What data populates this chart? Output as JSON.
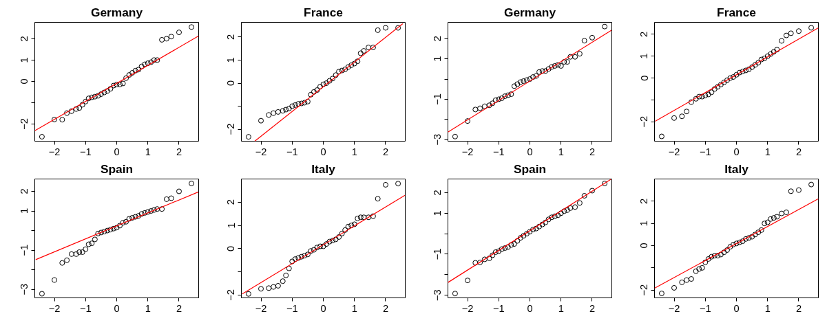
{
  "chart_data": [
    {
      "type": "scatter",
      "title": "Germany",
      "grid": false,
      "xlim": [
        -2.63,
        2.63
      ],
      "ylim": [
        -2.81,
        2.77
      ],
      "xticks": [
        -2,
        -1,
        0,
        1,
        2
      ],
      "yticks": [
        -2,
        {
          "value": -1,
          "label": null
        },
        0,
        1,
        2
      ],
      "x": [
        -2.4,
        -2.0,
        -1.75,
        -1.6,
        -1.45,
        -1.3,
        -1.2,
        -1.1,
        -1.0,
        -0.9,
        -0.8,
        -0.7,
        -0.6,
        -0.5,
        -0.4,
        -0.3,
        -0.2,
        -0.1,
        0,
        0.1,
        0.2,
        0.3,
        0.4,
        0.5,
        0.6,
        0.7,
        0.8,
        0.9,
        1.0,
        1.1,
        1.2,
        1.3,
        1.45,
        1.6,
        1.75,
        2.0,
        2.4
      ],
      "series": [
        {
          "color": "#000000",
          "marker": "circle",
          "values": [
            -2.6,
            -1.79,
            -1.8,
            -1.49,
            -1.4,
            -1.3,
            -1.25,
            -1.1,
            -0.95,
            -0.8,
            -0.75,
            -0.72,
            -0.68,
            -0.6,
            -0.52,
            -0.45,
            -0.35,
            -0.2,
            -0.15,
            -0.15,
            -0.1,
            0.15,
            0.3,
            0.4,
            0.5,
            0.55,
            0.7,
            0.8,
            0.85,
            0.9,
            1.0,
            1.0,
            1.95,
            2.0,
            2.1,
            2.3,
            2.55
          ]
        },
        {
          "type": "line",
          "color": "#ff0000",
          "x": [
            -2.63,
            2.63
          ],
          "values": [
            -2.32,
            2.13
          ]
        }
      ]
    },
    {
      "type": "scatter",
      "title": "France",
      "grid": false,
      "xlim": [
        -2.63,
        2.63
      ],
      "ylim": [
        -2.52,
        2.64
      ],
      "xticks": [
        -2,
        -1,
        0,
        1,
        2
      ],
      "yticks": [
        -2,
        {
          "value": -1,
          "label": null
        },
        0,
        1,
        2
      ],
      "x": [
        -2.4,
        -2.0,
        -1.75,
        -1.6,
        -1.45,
        -1.3,
        -1.2,
        -1.1,
        -1.0,
        -0.9,
        -0.8,
        -0.7,
        -0.6,
        -0.5,
        -0.4,
        -0.3,
        -0.2,
        -0.1,
        0,
        0.1,
        0.2,
        0.3,
        0.4,
        0.5,
        0.6,
        0.7,
        0.8,
        0.9,
        1.0,
        1.1,
        1.2,
        1.3,
        1.45,
        1.6,
        1.75,
        2.0,
        2.4
      ],
      "series": [
        {
          "color": "#000000",
          "marker": "circle",
          "values": [
            -2.33,
            -1.63,
            -1.38,
            -1.3,
            -1.25,
            -1.2,
            -1.15,
            -1.1,
            -1.0,
            -0.95,
            -0.9,
            -0.88,
            -0.85,
            -0.8,
            -0.5,
            -0.38,
            -0.3,
            -0.15,
            -0.05,
            0.0,
            0.1,
            0.2,
            0.35,
            0.5,
            0.55,
            0.6,
            0.7,
            0.78,
            0.85,
            0.95,
            1.3,
            1.4,
            1.55,
            1.55,
            2.3,
            2.4,
            2.4
          ]
        },
        {
          "type": "line",
          "color": "#ff0000",
          "x": [
            -2.2,
            2.55
          ],
          "values": [
            -2.52,
            2.58
          ]
        }
      ]
    },
    {
      "type": "scatter",
      "title": "Germany",
      "grid": false,
      "xlim": [
        -2.63,
        2.63
      ],
      "ylim": [
        -3.08,
        2.81
      ],
      "xticks": [
        -2,
        -1,
        0,
        1,
        2
      ],
      "yticks": [
        -3,
        {
          "value": -2,
          "label": null
        },
        -1,
        {
          "value": 0,
          "label": null
        },
        1,
        2
      ],
      "x": [
        -2.4,
        -2.0,
        -1.75,
        -1.6,
        -1.45,
        -1.3,
        -1.2,
        -1.1,
        -1.0,
        -0.9,
        -0.8,
        -0.7,
        -0.6,
        -0.5,
        -0.4,
        -0.3,
        -0.2,
        -0.1,
        0,
        0.1,
        0.2,
        0.3,
        0.4,
        0.5,
        0.6,
        0.7,
        0.8,
        0.9,
        1.0,
        1.1,
        1.2,
        1.3,
        1.45,
        1.6,
        1.75,
        2.0,
        2.4
      ],
      "series": [
        {
          "color": "#000000",
          "marker": "circle",
          "values": [
            -2.85,
            -2.08,
            -1.51,
            -1.45,
            -1.35,
            -1.3,
            -1.2,
            -1.05,
            -1.0,
            -0.95,
            -0.85,
            -0.8,
            -0.75,
            -0.35,
            -0.25,
            -0.15,
            -0.1,
            -0.05,
            0.0,
            0.1,
            0.15,
            0.35,
            0.4,
            0.4,
            0.5,
            0.6,
            0.65,
            0.7,
            0.65,
            0.85,
            0.85,
            1.1,
            1.1,
            1.25,
            1.9,
            2.05,
            2.6
          ]
        },
        {
          "type": "line",
          "color": "#ff0000",
          "x": [
            -2.63,
            2.62
          ],
          "values": [
            -2.63,
            2.42
          ]
        }
      ]
    },
    {
      "type": "scatter",
      "title": "France",
      "grid": false,
      "xlim": [
        -2.63,
        2.63
      ],
      "ylim": [
        -2.89,
        2.55
      ],
      "xticks": [
        -2,
        -1,
        0,
        1,
        2
      ],
      "yticks": [
        -2,
        {
          "value": -1,
          "label": null
        },
        0,
        1,
        2
      ],
      "x": [
        -2.4,
        -2.0,
        -1.75,
        -1.6,
        -1.45,
        -1.3,
        -1.2,
        -1.1,
        -1.0,
        -0.9,
        -0.8,
        -0.7,
        -0.6,
        -0.5,
        -0.4,
        -0.3,
        -0.2,
        -0.1,
        0,
        0.1,
        0.2,
        0.3,
        0.4,
        0.5,
        0.6,
        0.7,
        0.8,
        0.9,
        1.0,
        1.1,
        1.2,
        1.3,
        1.45,
        1.6,
        1.75,
        2.0,
        2.4
      ],
      "series": [
        {
          "color": "#000000",
          "marker": "circle",
          "values": [
            -2.67,
            -1.83,
            -1.75,
            -1.53,
            -1.1,
            -0.95,
            -0.85,
            -0.85,
            -0.8,
            -0.75,
            -0.65,
            -0.5,
            -0.4,
            -0.3,
            -0.2,
            -0.1,
            0.0,
            0.05,
            0.15,
            0.25,
            0.3,
            0.35,
            0.4,
            0.5,
            0.6,
            0.7,
            0.85,
            0.9,
            1.0,
            1.1,
            1.2,
            1.3,
            1.7,
            1.95,
            2.05,
            2.15,
            2.3
          ]
        },
        {
          "type": "line",
          "color": "#ff0000",
          "x": [
            -2.61,
            2.63
          ],
          "values": [
            -1.98,
            2.3
          ]
        }
      ]
    },
    {
      "type": "scatter",
      "title": "Spain",
      "grid": false,
      "xlim": [
        -2.63,
        2.63
      ],
      "ylim": [
        -3.43,
        2.63
      ],
      "xticks": [
        -2,
        -1,
        0,
        1,
        2
      ],
      "yticks": [
        -3,
        {
          "value": -2,
          "label": null
        },
        -1,
        {
          "value": 0,
          "label": null
        },
        1,
        2
      ],
      "x": [
        -2.4,
        -2.0,
        -1.75,
        -1.6,
        -1.45,
        -1.3,
        -1.2,
        -1.1,
        -1.0,
        -0.9,
        -0.8,
        -0.7,
        -0.6,
        -0.5,
        -0.4,
        -0.3,
        -0.2,
        -0.1,
        0,
        0.1,
        0.2,
        0.3,
        0.4,
        0.5,
        0.6,
        0.7,
        0.8,
        0.9,
        1.0,
        1.1,
        1.2,
        1.3,
        1.45,
        1.6,
        1.75,
        2.0,
        2.4
      ],
      "series": [
        {
          "color": "#000000",
          "marker": "circle",
          "values": [
            -3.22,
            -2.52,
            -1.65,
            -1.51,
            -1.2,
            -1.2,
            -1.1,
            -1.1,
            -0.95,
            -0.7,
            -0.65,
            -0.45,
            -0.15,
            -0.1,
            -0.05,
            0.0,
            0.05,
            0.1,
            0.15,
            0.25,
            0.4,
            0.45,
            0.6,
            0.65,
            0.7,
            0.75,
            0.85,
            0.9,
            0.95,
            1.0,
            1.05,
            1.1,
            1.1,
            1.6,
            1.65,
            2.0,
            2.4
          ]
        },
        {
          "type": "line",
          "color": "#ff0000",
          "x": [
            -2.6,
            2.62
          ],
          "values": [
            -1.48,
            1.97
          ]
        }
      ]
    },
    {
      "type": "scatter",
      "title": "Italy",
      "grid": false,
      "xlim": [
        -2.63,
        2.63
      ],
      "ylim": [
        -2.12,
        3.0
      ],
      "xticks": [
        -2,
        -1,
        0,
        1,
        2
      ],
      "yticks": [
        -2,
        {
          "value": -1,
          "label": null
        },
        0,
        1,
        2
      ],
      "x": [
        -2.4,
        -2.0,
        -1.75,
        -1.6,
        -1.45,
        -1.3,
        -1.2,
        -1.1,
        -1.0,
        -0.9,
        -0.8,
        -0.7,
        -0.6,
        -0.5,
        -0.4,
        -0.3,
        -0.2,
        -0.1,
        0,
        0.1,
        0.2,
        0.3,
        0.4,
        0.5,
        0.6,
        0.7,
        0.8,
        0.9,
        1.0,
        1.1,
        1.2,
        1.3,
        1.45,
        1.6,
        1.75,
        2.0,
        2.4
      ],
      "series": [
        {
          "color": "#000000",
          "marker": "circle",
          "values": [
            -1.95,
            -1.73,
            -1.7,
            -1.65,
            -1.6,
            -1.4,
            -1.15,
            -0.85,
            -0.55,
            -0.45,
            -0.4,
            -0.35,
            -0.3,
            -0.25,
            -0.1,
            -0.05,
            0.05,
            0.1,
            0.1,
            0.2,
            0.3,
            0.35,
            0.4,
            0.5,
            0.65,
            0.8,
            0.95,
            1.0,
            1.05,
            1.3,
            1.35,
            1.35,
            1.35,
            1.4,
            2.15,
            2.75,
            2.8
          ]
        },
        {
          "type": "line",
          "color": "#ff0000",
          "x": [
            -2.6,
            2.62
          ],
          "values": [
            -1.95,
            2.3
          ]
        }
      ]
    },
    {
      "type": "scatter",
      "title": "Spain",
      "grid": false,
      "xlim": [
        -2.63,
        2.63
      ],
      "ylim": [
        -3.13,
        2.67
      ],
      "xticks": [
        -2,
        -1,
        0,
        1,
        2
      ],
      "yticks": [
        -3,
        {
          "value": -2,
          "label": null
        },
        -1,
        {
          "value": 0,
          "label": null
        },
        1,
        2
      ],
      "x": [
        -2.4,
        -2.0,
        -1.75,
        -1.6,
        -1.45,
        -1.3,
        -1.2,
        -1.1,
        -1.0,
        -0.9,
        -0.8,
        -0.7,
        -0.6,
        -0.5,
        -0.4,
        -0.3,
        -0.2,
        -0.1,
        0,
        0.1,
        0.2,
        0.3,
        0.4,
        0.5,
        0.6,
        0.7,
        0.8,
        0.9,
        1.0,
        1.1,
        1.2,
        1.3,
        1.45,
        1.6,
        1.75,
        2.0,
        2.4
      ],
      "series": [
        {
          "color": "#000000",
          "marker": "circle",
          "values": [
            -2.92,
            -2.28,
            -1.42,
            -1.4,
            -1.25,
            -1.2,
            -1.05,
            -0.9,
            -0.85,
            -0.75,
            -0.7,
            -0.65,
            -0.55,
            -0.5,
            -0.35,
            -0.2,
            -0.1,
            0.0,
            0.1,
            0.2,
            0.25,
            0.35,
            0.45,
            0.55,
            0.7,
            0.8,
            0.85,
            0.9,
            1.0,
            1.1,
            1.15,
            1.25,
            1.3,
            1.5,
            1.85,
            2.1,
            2.45
          ]
        },
        {
          "type": "line",
          "color": "#ff0000",
          "x": [
            -2.63,
            2.6
          ],
          "values": [
            -2.38,
            2.65
          ]
        }
      ]
    },
    {
      "type": "scatter",
      "title": "Italy",
      "grid": false,
      "xlim": [
        -2.63,
        2.63
      ],
      "ylim": [
        -2.35,
        3.0
      ],
      "xticks": [
        -2,
        -1,
        0,
        1,
        2
      ],
      "yticks": [
        -2,
        {
          "value": -1,
          "label": null
        },
        0,
        1,
        2
      ],
      "x": [
        -2.4,
        -2.0,
        -1.75,
        -1.6,
        -1.45,
        -1.3,
        -1.2,
        -1.1,
        -1.0,
        -0.9,
        -0.8,
        -0.7,
        -0.6,
        -0.5,
        -0.4,
        -0.3,
        -0.2,
        -0.1,
        0,
        0.1,
        0.2,
        0.3,
        0.4,
        0.5,
        0.6,
        0.7,
        0.8,
        0.9,
        1.0,
        1.1,
        1.2,
        1.3,
        1.45,
        1.6,
        1.75,
        2.0,
        2.4
      ],
      "series": [
        {
          "color": "#000000",
          "marker": "circle",
          "values": [
            -2.15,
            -1.9,
            -1.65,
            -1.55,
            -1.5,
            -1.15,
            -1.05,
            -1.0,
            -0.75,
            -0.6,
            -0.5,
            -0.45,
            -0.45,
            -0.4,
            -0.3,
            -0.2,
            -0.05,
            0.05,
            0.1,
            0.15,
            0.2,
            0.3,
            0.35,
            0.4,
            0.5,
            0.6,
            0.7,
            1.0,
            1.05,
            1.2,
            1.25,
            1.3,
            1.45,
            1.5,
            2.45,
            2.5,
            2.75
          ]
        },
        {
          "type": "line",
          "color": "#ff0000",
          "x": [
            -2.63,
            2.63
          ],
          "values": [
            -1.92,
            2.11
          ]
        }
      ]
    }
  ]
}
